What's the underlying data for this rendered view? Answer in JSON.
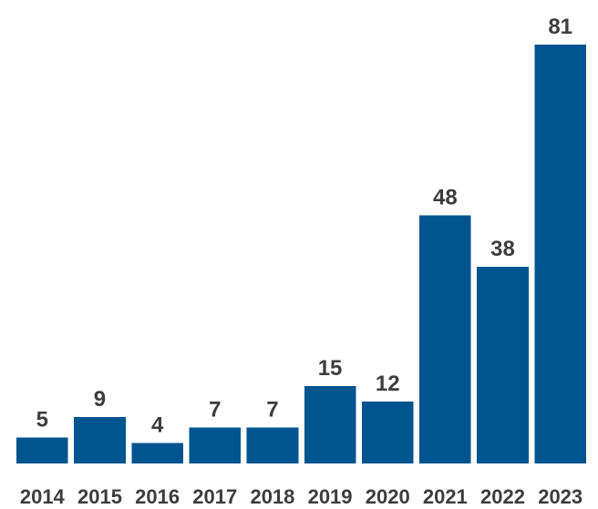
{
  "chart_data": {
    "type": "bar",
    "categories": [
      "2014",
      "2015",
      "2016",
      "2017",
      "2018",
      "2019",
      "2020",
      "2021",
      "2022",
      "2023"
    ],
    "values": [
      5,
      9,
      4,
      7,
      7,
      15,
      12,
      48,
      38,
      81
    ],
    "title": "",
    "xlabel": "",
    "ylabel": "",
    "ylim": [
      0,
      81
    ],
    "grid": false,
    "legend": "none",
    "data_labels": true,
    "bar_color": "#00548f",
    "label_color": "#3d3d3d"
  }
}
